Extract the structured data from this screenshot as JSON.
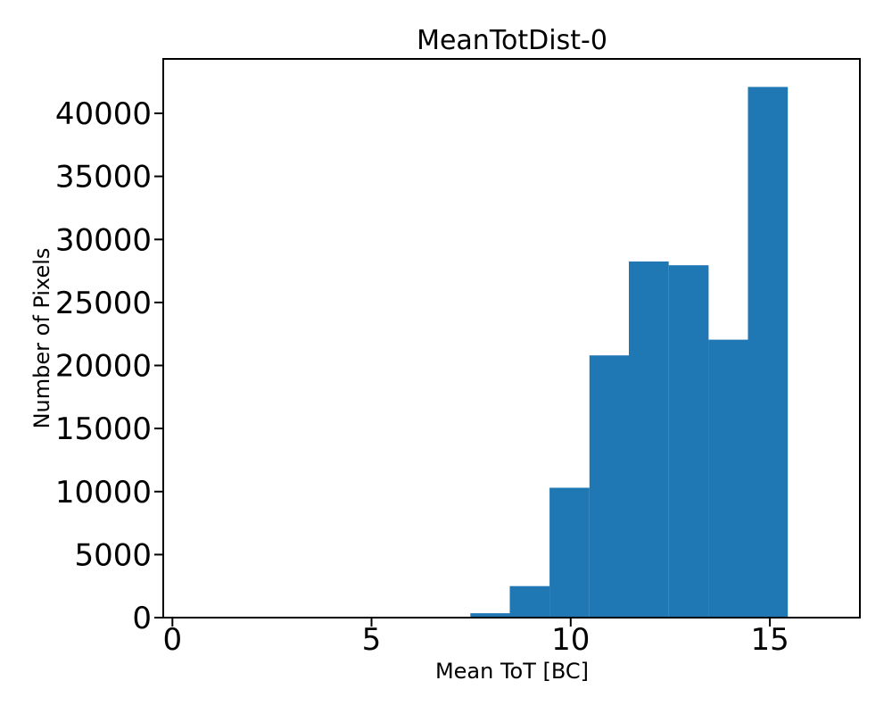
{
  "figure": {
    "background": "#ffffff",
    "bar_color": "#1f77b4",
    "axis_color": "#000000",
    "text_color": "#000000"
  },
  "chart_data": {
    "type": "bar",
    "subtype": "histogram",
    "title": "MeanTotDist-0",
    "xlabel": "Mean ToT [BC]",
    "ylabel": "Number of Pixels",
    "bin_edges": [
      7.48,
      8.47,
      9.47,
      10.47,
      11.46,
      12.46,
      13.46,
      14.45,
      15.45
    ],
    "counts": [
      350,
      2500,
      10300,
      20800,
      28250,
      27950,
      22050,
      42100
    ],
    "xticks": [
      0,
      5,
      10,
      15
    ],
    "yticks": [
      0,
      5000,
      10000,
      15000,
      20000,
      25000,
      30000,
      35000,
      40000
    ],
    "xlim": [
      -0.23,
      17.26
    ],
    "ylim": [
      0,
      44320
    ],
    "grid": false,
    "legend": null
  }
}
